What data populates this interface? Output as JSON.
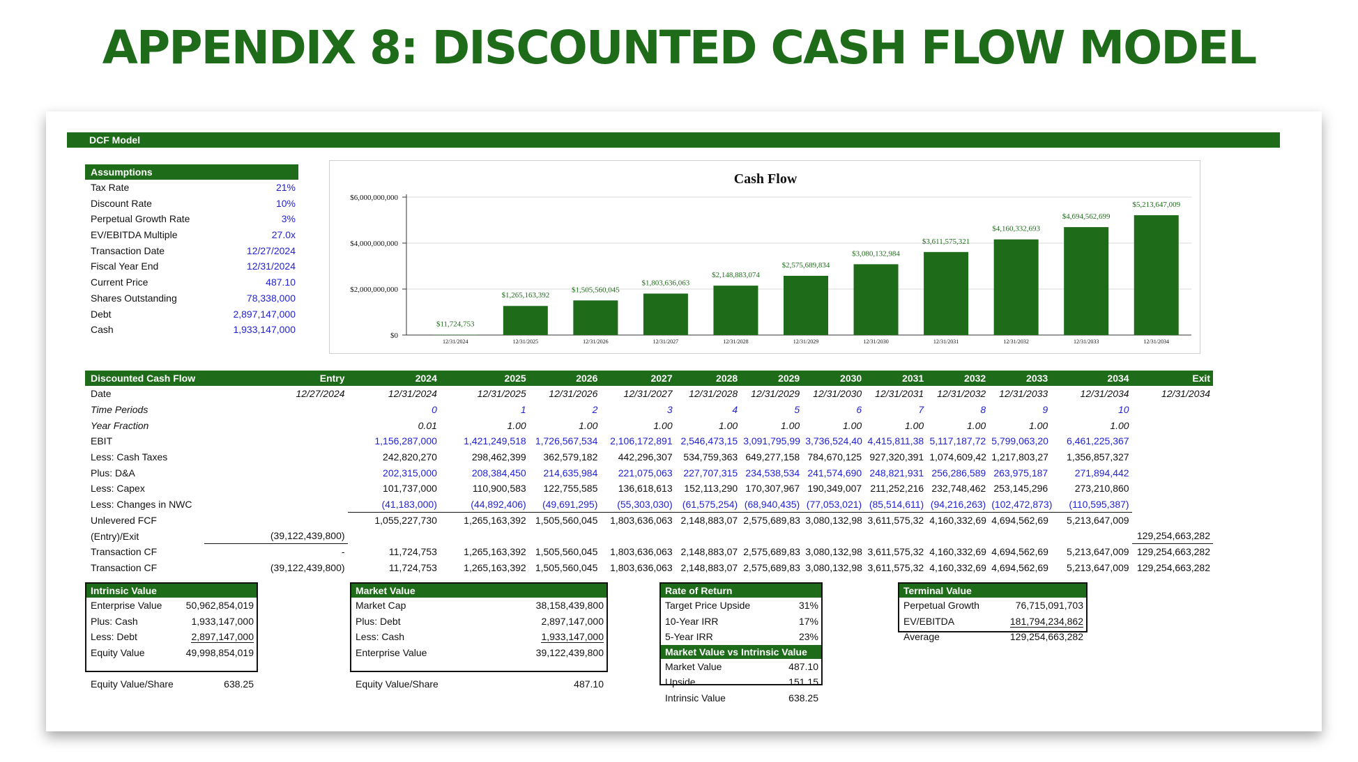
{
  "title": "APPENDIX 8: DISCOUNTED CASH FLOW MODEL",
  "section": "DCF Model",
  "assumptions": {
    "header": "Assumptions",
    "rows": [
      {
        "label": "Tax Rate",
        "value": "21%"
      },
      {
        "label": "Discount Rate",
        "value": "10%"
      },
      {
        "label": "Perpetual Growth Rate",
        "value": "3%"
      },
      {
        "label": "EV/EBITDA Multiple",
        "value": "27.0x"
      },
      {
        "label": "Transaction Date",
        "value": "12/27/2024"
      },
      {
        "label": "Fiscal Year End",
        "value": "12/31/2024"
      },
      {
        "label": "Current Price",
        "value": "487.10"
      },
      {
        "label": "Shares Outstanding",
        "value": "78,338,000"
      },
      {
        "label": "Debt",
        "value": "2,897,147,000"
      },
      {
        "label": "Cash",
        "value": "1,933,147,000"
      }
    ]
  },
  "chart_data": {
    "type": "bar",
    "title": "Cash Flow",
    "xlabel": "",
    "ylabel": "",
    "ylim": [
      0,
      6000000000
    ],
    "yticks": [
      "$0",
      "$2,000,000,000",
      "$4,000,000,000",
      "$6,000,000,000"
    ],
    "categories": [
      "12/31/2024",
      "12/31/2025",
      "12/31/2026",
      "12/31/2027",
      "12/31/2028",
      "12/31/2029",
      "12/31/2030",
      "12/31/2031",
      "12/31/2032",
      "12/31/2033",
      "12/31/2034"
    ],
    "values": [
      11724753,
      1265163392,
      1505560045,
      1803636063,
      2148883074,
      2575689834,
      3080132984,
      3611575321,
      4160332693,
      4694562699,
      5213647009
    ],
    "data_labels": [
      "$11,724,753",
      "$1,265,163,392",
      "$1,505,560,045",
      "$1,803,636,063",
      "$2,148,883,074",
      "$2,575,689,834",
      "$3,080,132,984",
      "$3,611,575,321",
      "$4,160,332,693",
      "$4,694,562,699",
      "$5,213,647,009"
    ],
    "bar_color": "#1e6b1a",
    "label_color": "#1e6b1a",
    "grid": true
  },
  "dcf": {
    "headers": [
      "Discounted Cash Flow",
      "Entry",
      "2024",
      "2025",
      "2026",
      "2027",
      "2028",
      "2029",
      "2030",
      "2031",
      "2032",
      "2033",
      "2034",
      "Exit"
    ],
    "rows": [
      {
        "label": "Date",
        "style": "italic-vals",
        "cells": [
          "12/27/2024",
          "12/31/2024",
          "12/31/2025",
          "12/31/2026",
          "12/31/2027",
          "12/31/2028",
          "12/31/2029",
          "12/31/2030",
          "12/31/2031",
          "12/31/2032",
          "12/31/2033",
          "12/31/2034",
          "12/31/2034"
        ]
      },
      {
        "label": "Time Periods",
        "style": "italic-blue",
        "cells": [
          "",
          "0",
          "1",
          "2",
          "3",
          "4",
          "5",
          "6",
          "7",
          "8",
          "9",
          "10",
          ""
        ]
      },
      {
        "label": "Year Fraction",
        "style": "italic",
        "cells": [
          "",
          "0.01",
          "1.00",
          "1.00",
          "1.00",
          "1.00",
          "1.00",
          "1.00",
          "1.00",
          "1.00",
          "1.00",
          "1.00",
          ""
        ]
      },
      {
        "label": "EBIT",
        "style": "blue",
        "cells": [
          "",
          "1,156,287,000",
          "1,421,249,518",
          "1,726,567,534",
          "2,106,172,891",
          "2,546,473,15",
          "3,091,795,99",
          "3,736,524,40",
          "4,415,811,38",
          "5,117,187,72",
          "5,799,063,20",
          "6,461,225,367",
          ""
        ]
      },
      {
        "label": "Less: Cash Taxes",
        "style": "",
        "cells": [
          "",
          "242,820,270",
          "298,462,399",
          "362,579,182",
          "442,296,307",
          "534,759,363",
          "649,277,158",
          "784,670,125",
          "927,320,391",
          "1,074,609,42",
          "1,217,803,27",
          "1,356,857,327",
          ""
        ]
      },
      {
        "label": "Plus: D&A",
        "style": "blue",
        "cells": [
          "",
          "202,315,000",
          "208,384,450",
          "214,635,984",
          "221,075,063",
          "227,707,315",
          "234,538,534",
          "241,574,690",
          "248,821,931",
          "256,286,589",
          "263,975,187",
          "271,894,442",
          ""
        ]
      },
      {
        "label": "Less: Capex",
        "style": "",
        "cells": [
          "",
          "101,737,000",
          "110,900,583",
          "122,755,585",
          "136,618,613",
          "152,113,290",
          "170,307,967",
          "190,349,007",
          "211,252,216",
          "232,748,462",
          "253,145,296",
          "273,210,860",
          ""
        ]
      },
      {
        "label": "Less: Changes in NWC",
        "style": "blue-ul",
        "cells": [
          "",
          "(41,183,000)",
          "(44,892,406)",
          "(49,691,295)",
          "(55,303,030)",
          "(61,575,254)",
          "(68,940,435)",
          "(77,053,021)",
          "(85,514,611)",
          "(94,216,263)",
          "(102,472,873)",
          "(110,595,387)",
          ""
        ]
      },
      {
        "label": "Unlevered FCF",
        "style": "",
        "cells": [
          "",
          "1,055,227,730",
          "1,265,163,392",
          "1,505,560,045",
          "1,803,636,063",
          "2,148,883,07",
          "2,575,689,83",
          "3,080,132,98",
          "3,611,575,32",
          "4,160,332,69",
          "4,694,562,69",
          "5,213,647,009",
          ""
        ]
      },
      {
        "label": "(Entry)/Exit",
        "style": "entry",
        "cells": [
          "(39,122,439,800)",
          "",
          "",
          "",
          "",
          "",
          "",
          "",
          "",
          "",
          "",
          "",
          "129,254,663,282"
        ]
      },
      {
        "label": "Transaction CF",
        "style": "",
        "cells": [
          "-",
          "11,724,753",
          "1,265,163,392",
          "1,505,560,045",
          "1,803,636,063",
          "2,148,883,07",
          "2,575,689,83",
          "3,080,132,98",
          "3,611,575,32",
          "4,160,332,69",
          "4,694,562,69",
          "5,213,647,009",
          "129,254,663,282"
        ]
      },
      {
        "label": "Transaction CF",
        "style": "",
        "cells": [
          "(39,122,439,800)",
          "11,724,753",
          "1,265,163,392",
          "1,505,560,045",
          "1,803,636,063",
          "2,148,883,07",
          "2,575,689,83",
          "3,080,132,98",
          "3,611,575,32",
          "4,160,332,69",
          "4,694,562,69",
          "5,213,647,009",
          "129,254,663,282"
        ]
      }
    ]
  },
  "intrinsic": {
    "header": "Intrinsic Value",
    "rows": [
      {
        "label": "Enterprise Value",
        "value": "50,962,854,019"
      },
      {
        "label": "Plus: Cash",
        "value": "1,933,147,000"
      },
      {
        "label": "Less: Debt",
        "value": "2,897,147,000"
      },
      {
        "label": "Equity Value",
        "value": "49,998,854,019"
      },
      {
        "label": "",
        "value": ""
      },
      {
        "label": "Equity Value/Share",
        "value": "638.25"
      }
    ]
  },
  "market": {
    "header": "Market Value",
    "rows": [
      {
        "label": "Market Cap",
        "value": "38,158,439,800"
      },
      {
        "label": "Plus: Debt",
        "value": "2,897,147,000"
      },
      {
        "label": "Less: Cash",
        "value": "1,933,147,000"
      },
      {
        "label": "Enterprise Value",
        "value": "39,122,439,800"
      },
      {
        "label": "",
        "value": ""
      },
      {
        "label": "Equity Value/Share",
        "value": "487.10"
      }
    ]
  },
  "ror": {
    "header": "Rate of Return",
    "rows": [
      {
        "label": "Target Price Upside",
        "value": "31%"
      },
      {
        "label": "10-Year IRR",
        "value": "17%"
      },
      {
        "label": "5-Year IRR",
        "value": "23%"
      }
    ],
    "header2": "Market Value vs Intrinsic Value",
    "rows2": [
      {
        "label": "Market Value",
        "value": "487.10"
      },
      {
        "label": "Upside",
        "value": "151.15"
      },
      {
        "label": "Intrinsic Value",
        "value": "638.25"
      }
    ]
  },
  "terminal": {
    "header": "Terminal Value",
    "rows": [
      {
        "label": "Perpetual Growth",
        "value": "76,715,091,703"
      },
      {
        "label": "EV/EBITDA",
        "value": "181,794,234,862"
      },
      {
        "label": "Average",
        "value": "129,254,663,282"
      }
    ]
  }
}
